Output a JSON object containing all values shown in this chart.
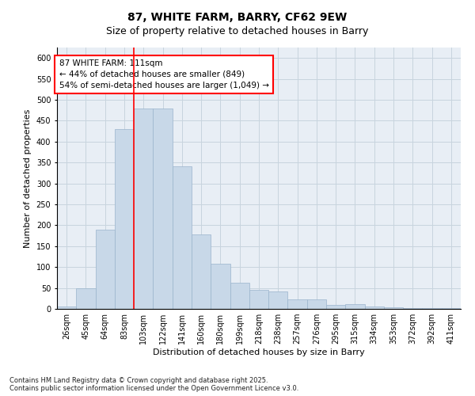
{
  "title": "87, WHITE FARM, BARRY, CF62 9EW",
  "subtitle": "Size of property relative to detached houses in Barry",
  "xlabel": "Distribution of detached houses by size in Barry",
  "ylabel": "Number of detached properties",
  "categories": [
    "26sqm",
    "45sqm",
    "64sqm",
    "83sqm",
    "103sqm",
    "122sqm",
    "141sqm",
    "160sqm",
    "180sqm",
    "199sqm",
    "218sqm",
    "238sqm",
    "257sqm",
    "276sqm",
    "295sqm",
    "315sqm",
    "334sqm",
    "353sqm",
    "372sqm",
    "392sqm",
    "411sqm"
  ],
  "values": [
    5,
    50,
    190,
    430,
    480,
    480,
    340,
    178,
    108,
    62,
    45,
    42,
    22,
    22,
    10,
    12,
    5,
    4,
    2,
    1,
    1
  ],
  "bar_color": "#c8d8e8",
  "bar_edge_color": "#9ab4cc",
  "grid_color": "#c8d4de",
  "background_color": "#e8eef5",
  "annotation_text": "87 WHITE FARM: 111sqm\n← 44% of detached houses are smaller (849)\n54% of semi-detached houses are larger (1,049) →",
  "redline_index": 4,
  "ylim": [
    0,
    625
  ],
  "yticks": [
    0,
    50,
    100,
    150,
    200,
    250,
    300,
    350,
    400,
    450,
    500,
    550,
    600
  ],
  "footnote": "Contains HM Land Registry data © Crown copyright and database right 2025.\nContains public sector information licensed under the Open Government Licence v3.0.",
  "title_fontsize": 10,
  "subtitle_fontsize": 9,
  "axis_label_fontsize": 8,
  "tick_fontsize": 7,
  "annot_fontsize": 7.5,
  "footnote_fontsize": 6
}
